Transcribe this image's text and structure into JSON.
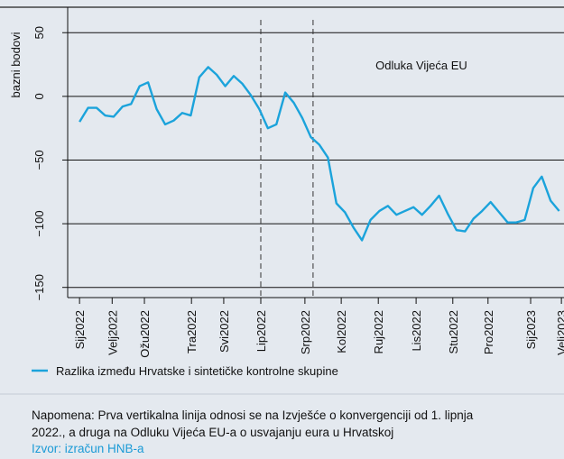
{
  "chart_data": {
    "type": "line",
    "y_label": "bazni bodovi",
    "annotation": "Odluka Vijeća EU",
    "vlines": [
      4.89,
      6.3
    ],
    "x": [
      0,
      0.23,
      0.46,
      0.69,
      0.92,
      1.16,
      1.39,
      1.62,
      1.85,
      2.08,
      2.31,
      2.54,
      2.77,
      3.0,
      3.23,
      3.47,
      3.7,
      3.93,
      4.16,
      4.39,
      4.62,
      4.85,
      5.08,
      5.31,
      5.55,
      5.78,
      6.01,
      6.24,
      6.47,
      6.7,
      6.93,
      7.16,
      7.39,
      7.62,
      7.85,
      8.09,
      8.32,
      8.55,
      8.78,
      9.01,
      9.24,
      9.47,
      9.7,
      9.93,
      10.17,
      10.4,
      10.63,
      10.86,
      11.09,
      11.32,
      11.55,
      11.78,
      12.01,
      12.24,
      12.47,
      12.71,
      12.94
    ],
    "series": [
      {
        "name": "Razlika između Hrvatske i sintetičke kontrolne skupine",
        "color": "#1ba3db",
        "values": [
          -20,
          -9,
          -9,
          -15,
          -16,
          -8,
          -6,
          8,
          11,
          -10,
          -22,
          -19,
          -13,
          -15,
          15,
          23,
          17,
          8,
          16,
          10,
          1,
          -10,
          -25,
          -22,
          3,
          -5,
          -17,
          -32,
          -38,
          -48,
          -84,
          -91,
          -103,
          -113,
          -97,
          -90,
          -86,
          -93,
          -90,
          -87,
          -93,
          -86,
          -78,
          -92,
          -105,
          -106,
          -96,
          -90,
          -83,
          -91,
          -99,
          -99,
          -97,
          -72,
          -63,
          -82,
          -90
        ]
      }
    ],
    "xlim": [
      -0.32,
      13.07
    ],
    "xticks": [
      {
        "value": 0,
        "label": "Sij2022"
      },
      {
        "value": 0.88,
        "label": "Velj2022"
      },
      {
        "value": 1.75,
        "label": "Ožu2022"
      },
      {
        "value": 3.02,
        "label": "Tra2022"
      },
      {
        "value": 3.89,
        "label": "Svi2022"
      },
      {
        "value": 4.89,
        "label": "Lip2022"
      },
      {
        "value": 6.08,
        "label": "Srp2022"
      },
      {
        "value": 7.06,
        "label": "Kol2022"
      },
      {
        "value": 8.06,
        "label": "Ruj2022"
      },
      {
        "value": 9.08,
        "label": "Lis2022"
      },
      {
        "value": 10.07,
        "label": "Stu2022"
      },
      {
        "value": 11.02,
        "label": "Pro2022"
      },
      {
        "value": 12.17,
        "label": "Sij2023"
      },
      {
        "value": 13.0,
        "label": "Velj2023"
      }
    ],
    "ylim": [
      -158,
      70
    ],
    "yticks": [
      50,
      0,
      {
        "value": -50,
        "label": "−50"
      },
      {
        "value": -100,
        "label": "−100"
      },
      {
        "value": -150,
        "label": "−150"
      }
    ],
    "grid": true,
    "note": [
      "Napomena: Prva vertikalna linija odnosi se na Izvješće o konvergenciji od 1. lipnja",
      "2022., a druga na Odluku Vijeća EU-a o usvajanju eura u Hrvatskoj"
    ],
    "source": "Izvor: izračun HNB-a"
  }
}
